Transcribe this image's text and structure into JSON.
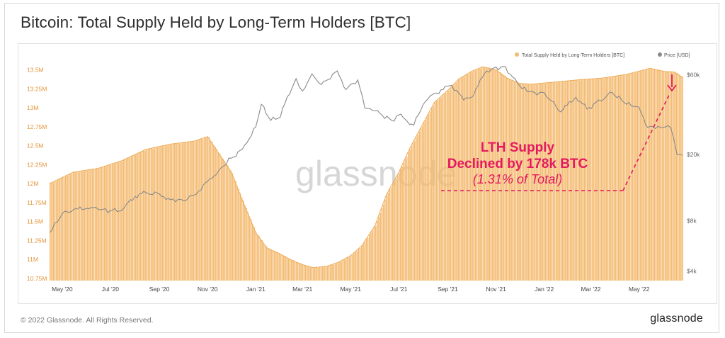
{
  "title": "Bitcoin: Total Supply Held by Long-Term Holders [BTC]",
  "footer": {
    "copyright": "© 2022 Glassnode. All Rights Reserved.",
    "brand": "glassnode"
  },
  "watermark": "glassnode",
  "annotation": {
    "line1": "LTH Supply",
    "line2": "Declined by 178k BTC",
    "line3": "(1.31% of Total)"
  },
  "colors": {
    "supply": "#f4bb72",
    "supply_stroke": "#eeab56",
    "price": "#8a8a8a",
    "annotation": "#e5195e"
  },
  "chart_data": {
    "type": "area",
    "x_ticks": [
      "May '20",
      "Jul '20",
      "Sep '20",
      "Nov '20",
      "Jan '21",
      "Mar '21",
      "May '21",
      "Jul '21",
      "Sep '21",
      "Nov '21",
      "Jan '22",
      "Mar '22",
      "May '22"
    ],
    "y_left_ticks": [
      "13.5M",
      "13.25M",
      "13M",
      "12.75M",
      "12.5M",
      "12.25M",
      "12M",
      "11.75M",
      "11.5M",
      "11.25M",
      "11M",
      "10.75M"
    ],
    "y_left_values": [
      13500000,
      13250000,
      13000000,
      12750000,
      12500000,
      12250000,
      12000000,
      11750000,
      11500000,
      11250000,
      11000000,
      10750000
    ],
    "y_right_ticks": [
      "$60k",
      "$20k",
      "$8k",
      "$4k"
    ],
    "y_right_values": [
      60000,
      20000,
      8000,
      4000
    ],
    "y_left_range": [
      10720000,
      13580000
    ],
    "y_right_range": [
      3500,
      70000
    ],
    "y_right_scale": "log",
    "legend_position": "top-right",
    "series": [
      {
        "name": "Total Supply Held by Long-Term Holders [BTC]",
        "axis": "left",
        "style": "area",
        "x": [
          "2020-04-15",
          "2020-05-15",
          "2020-06-15",
          "2020-07-15",
          "2020-08-15",
          "2020-09-15",
          "2020-10-15",
          "2020-11-01",
          "2020-11-15",
          "2020-12-01",
          "2020-12-15",
          "2021-01-01",
          "2021-01-15",
          "2021-02-01",
          "2021-02-15",
          "2021-03-01",
          "2021-03-15",
          "2021-04-01",
          "2021-04-15",
          "2021-05-01",
          "2021-05-15",
          "2021-06-01",
          "2021-06-15",
          "2021-07-01",
          "2021-07-15",
          "2021-08-01",
          "2021-08-15",
          "2021-09-01",
          "2021-09-15",
          "2021-10-01",
          "2021-10-15",
          "2021-11-01",
          "2021-11-15",
          "2021-12-01",
          "2021-12-15",
          "2022-01-15",
          "2022-02-15",
          "2022-03-15",
          "2022-04-15",
          "2022-05-15",
          "2022-06-01",
          "2022-06-15",
          "2022-06-25"
        ],
        "values": [
          12000000,
          12150000,
          12200000,
          12300000,
          12450000,
          12520000,
          12560000,
          12620000,
          12400000,
          12150000,
          11780000,
          11350000,
          11150000,
          11070000,
          10990000,
          10930000,
          10890000,
          10910000,
          10960000,
          11050000,
          11180000,
          11450000,
          11850000,
          12150000,
          12470000,
          12800000,
          13070000,
          13230000,
          13380000,
          13480000,
          13540000,
          13500000,
          13390000,
          13320000,
          13310000,
          13340000,
          13370000,
          13390000,
          13440000,
          13520000,
          13480000,
          13470000,
          13400000
        ]
      },
      {
        "name": "Price [USD]",
        "axis": "right",
        "style": "line",
        "x": [
          "2020-04-15",
          "2020-05-01",
          "2020-05-15",
          "2020-06-01",
          "2020-06-15",
          "2020-07-01",
          "2020-07-15",
          "2020-08-01",
          "2020-08-15",
          "2020-09-01",
          "2020-09-15",
          "2020-10-01",
          "2020-10-15",
          "2020-11-01",
          "2020-11-15",
          "2020-12-01",
          "2020-12-15",
          "2021-01-01",
          "2021-01-08",
          "2021-01-20",
          "2021-02-01",
          "2021-02-10",
          "2021-02-21",
          "2021-03-01",
          "2021-03-13",
          "2021-03-25",
          "2021-04-14",
          "2021-04-25",
          "2021-05-10",
          "2021-05-19",
          "2021-06-01",
          "2021-06-22",
          "2021-07-01",
          "2021-07-20",
          "2021-08-01",
          "2021-08-15",
          "2021-09-06",
          "2021-09-21",
          "2021-10-01",
          "2021-10-20",
          "2021-11-10",
          "2021-11-25",
          "2021-12-04",
          "2021-12-20",
          "2022-01-01",
          "2022-01-22",
          "2022-02-10",
          "2022-02-24",
          "2022-03-28",
          "2022-04-15",
          "2022-05-01",
          "2022-05-12",
          "2022-05-25",
          "2022-06-10",
          "2022-06-18",
          "2022-06-25"
        ],
        "values": [
          6800,
          8800,
          9300,
          9500,
          9400,
          9200,
          9200,
          11200,
          11800,
          11600,
          10700,
          10600,
          11400,
          13800,
          16000,
          19000,
          21500,
          29300,
          40000,
          32000,
          33500,
          44500,
          57000,
          48000,
          61000,
          52500,
          63500,
          49000,
          56000,
          38000,
          36500,
          32000,
          34500,
          30000,
          40000,
          46500,
          52000,
          42500,
          44000,
          63500,
          67500,
          57000,
          49500,
          47000,
          47000,
          36000,
          44000,
          37500,
          47000,
          40000,
          38500,
          29000,
          29500,
          29000,
          20000,
          19800
        ]
      }
    ]
  }
}
